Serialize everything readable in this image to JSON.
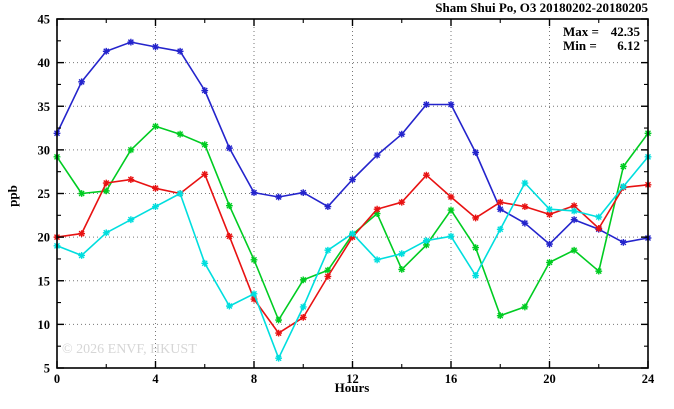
{
  "title": "Sham Shui Po, O3 20180202-20180205",
  "annotation": {
    "max_label": "Max =",
    "max_value": "42.35",
    "min_label": "Min =",
    "min_value": "6.12"
  },
  "watermark": "© 2026 ENVF, HKUST",
  "chart_data": {
    "type": "line",
    "title": "Sham Shui Po, O3 20180202-20180205",
    "xlabel": "Hours",
    "ylabel": "ppb",
    "xlim": [
      0,
      24
    ],
    "ylim": [
      5,
      45
    ],
    "x_major_ticks": [
      0,
      4,
      8,
      12,
      16,
      20,
      24
    ],
    "x_minor_ticks": [
      2,
      6,
      10,
      14,
      18,
      22
    ],
    "y_major_ticks": [
      5,
      10,
      15,
      20,
      25,
      30,
      35,
      40,
      45
    ],
    "y_minor_ticks": [
      7.5,
      12.5,
      17.5,
      22.5,
      27.5,
      32.5,
      37.5,
      42.5
    ],
    "grid": true,
    "legend": "none",
    "max": 42.35,
    "min": 6.12,
    "x": [
      0,
      1,
      2,
      3,
      4,
      5,
      6,
      7,
      8,
      9,
      10,
      11,
      12,
      13,
      14,
      15,
      16,
      17,
      18,
      19,
      20,
      21,
      22,
      23,
      24
    ],
    "series": [
      {
        "name": "series-blue",
        "color": "#2424cc",
        "marker": "star",
        "values": [
          31.9,
          37.8,
          41.3,
          42.35,
          41.8,
          41.3,
          36.8,
          30.2,
          25.1,
          24.6,
          25.1,
          23.5,
          26.6,
          29.4,
          31.8,
          35.2,
          35.2,
          29.7,
          23.2,
          21.6,
          19.2,
          22.0,
          20.9,
          19.4,
          19.9
        ]
      },
      {
        "name": "series-green",
        "color": "#00cc22",
        "marker": "star",
        "values": [
          29.2,
          25.0,
          25.3,
          30.0,
          32.7,
          31.8,
          30.6,
          23.6,
          17.4,
          10.5,
          15.1,
          16.2,
          20.3,
          22.7,
          16.3,
          19.1,
          23.1,
          18.8,
          11.0,
          12.0,
          17.1,
          18.5,
          16.1,
          28.1,
          31.9
        ]
      },
      {
        "name": "series-red",
        "color": "#e81212",
        "marker": "star",
        "values": [
          20.0,
          20.4,
          26.2,
          26.6,
          25.6,
          25.0,
          27.2,
          20.1,
          12.9,
          9.0,
          10.8,
          15.5,
          20.0,
          23.2,
          24.0,
          27.1,
          24.6,
          22.2,
          24.0,
          23.5,
          22.6,
          23.6,
          21.0,
          25.7,
          26.0
        ]
      },
      {
        "name": "series-cyan",
        "color": "#00dede",
        "marker": "star",
        "values": [
          19.0,
          17.9,
          20.5,
          22.0,
          23.5,
          25.0,
          17.0,
          12.1,
          13.5,
          6.12,
          12.0,
          18.5,
          20.4,
          17.4,
          18.1,
          19.6,
          20.1,
          15.6,
          20.9,
          26.2,
          23.2,
          23.0,
          22.3,
          25.8,
          29.2
        ]
      }
    ]
  }
}
